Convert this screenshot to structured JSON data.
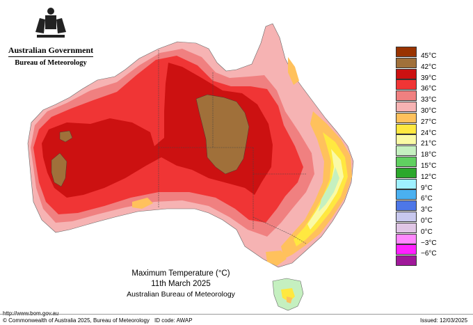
{
  "agency": {
    "government": "Australian Government",
    "bureau": "Bureau of Meteorology"
  },
  "legend": {
    "items": [
      {
        "label": "45°C",
        "color": "#993300"
      },
      {
        "label": "42°C",
        "color": "#a0703a"
      },
      {
        "label": "39°C",
        "color": "#cc1111"
      },
      {
        "label": "36°C",
        "color": "#f03535"
      },
      {
        "label": "33°C",
        "color": "#f08080"
      },
      {
        "label": "30°C",
        "color": "#f6b3b3"
      },
      {
        "label": "27°C",
        "color": "#ffc15c"
      },
      {
        "label": "24°C",
        "color": "#ffe840"
      },
      {
        "label": "21°C",
        "color": "#fafaa5"
      },
      {
        "label": "18°C",
        "color": "#c5f0c0"
      },
      {
        "label": "15°C",
        "color": "#60d060"
      },
      {
        "label": "12°C",
        "color": "#2ca82c"
      },
      {
        "label": "9°C",
        "color": "#9ff0ff"
      },
      {
        "label": "6°C",
        "color": "#4ab0f0"
      },
      {
        "label": "3°C",
        "color": "#4d77e8"
      },
      {
        "label": "0°C",
        "color": "#c8c8ee"
      },
      {
        "label": "0°C",
        "color": "#e0c6e6"
      },
      {
        "label": "−3°C",
        "color": "#ff88ff"
      },
      {
        "label": "−6°C",
        "color": "#ff22ff"
      },
      {
        "label": "",
        "color": "#a0189a"
      }
    ]
  },
  "caption": {
    "title": "Maximum Temperature (°C)",
    "date": "11th March 2025",
    "source": "Australian Bureau of Meteorology"
  },
  "footer": {
    "url": "http://www.bom.gov.au",
    "copyright": "© Commonwealth of Australia 2025, Bureau of Meteorology",
    "id_code": "ID code: AWAP",
    "issued": "Issued: 12/03/2025"
  }
}
